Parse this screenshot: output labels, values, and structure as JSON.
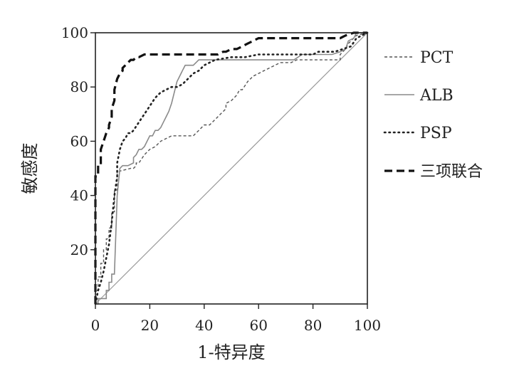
{
  "chart_data": {
    "type": "line",
    "xlabel": "1-特异度",
    "ylabel": "敏感度",
    "xlim": [
      0,
      100
    ],
    "ylim": [
      0,
      100
    ],
    "xticks": [
      "0",
      "20",
      "40",
      "60",
      "80",
      "100"
    ],
    "yticks": [
      "20",
      "40",
      "60",
      "80",
      "100"
    ],
    "grid": false,
    "legend_position": "right",
    "reference_line": {
      "x": [
        0,
        100
      ],
      "y": [
        0,
        100
      ],
      "color": "#999999"
    },
    "series": [
      {
        "name": "PCT",
        "style": "dashed-fine",
        "color": "#555555",
        "x": [
          0,
          0,
          1,
          1,
          2,
          2,
          3,
          3,
          4,
          4,
          5,
          5,
          6,
          6,
          7,
          7,
          8,
          8,
          9,
          13,
          14,
          15,
          15,
          16,
          18,
          20,
          22,
          24,
          26,
          28,
          30,
          32,
          34,
          36,
          38,
          40,
          42,
          44,
          46,
          48,
          48,
          50,
          52,
          53,
          54,
          56,
          58,
          60,
          62,
          64,
          66,
          68,
          70,
          72,
          74,
          76,
          78,
          80,
          82,
          84,
          86,
          88,
          90,
          90,
          91,
          92,
          93,
          94,
          96,
          100
        ],
        "y": [
          0,
          5,
          5,
          10,
          10,
          15,
          15,
          20,
          20,
          24,
          24,
          28,
          28,
          34,
          34,
          42,
          42,
          48,
          49,
          50,
          50,
          51,
          52,
          52,
          55,
          57,
          58,
          60,
          61,
          62,
          62,
          62,
          62,
          62,
          64,
          66,
          66,
          68,
          70,
          72,
          74,
          75,
          77,
          79,
          79,
          82,
          84,
          85,
          86,
          87,
          88,
          89,
          89,
          89,
          90,
          90,
          90,
          90,
          90,
          90,
          90,
          90,
          90,
          92,
          93,
          94,
          96,
          97,
          99,
          100
        ]
      },
      {
        "name": "ALB",
        "style": "solid",
        "color": "#8a8a8a",
        "x": [
          0,
          1,
          1,
          4,
          4,
          5,
          5,
          6,
          6,
          7,
          8,
          9,
          9,
          10,
          12,
          14,
          14,
          15,
          16,
          17,
          18,
          19,
          20,
          21,
          22,
          23,
          24,
          25,
          26,
          27,
          28,
          29,
          30,
          31,
          32,
          33,
          34,
          35,
          36,
          37,
          38,
          39,
          40,
          45,
          50,
          55,
          60,
          65,
          70,
          73,
          76,
          80,
          84,
          87,
          90,
          92,
          93,
          95,
          96,
          100
        ],
        "y": [
          0,
          0,
          2,
          2,
          5,
          5,
          8,
          8,
          11,
          11,
          40,
          50,
          50,
          51,
          51,
          52,
          54,
          55,
          57,
          57,
          58,
          60,
          62,
          62,
          64,
          64,
          65,
          67,
          69,
          71,
          74,
          78,
          82,
          84,
          86,
          88,
          88,
          88,
          88,
          89,
          90,
          90,
          90,
          90,
          90,
          90,
          90,
          90,
          90,
          90,
          92,
          92,
          92,
          92,
          93,
          94,
          97,
          98,
          100,
          100
        ]
      },
      {
        "name": "PSP",
        "style": "dotted",
        "color": "#222222",
        "x": [
          0,
          1,
          2,
          3,
          4,
          5,
          6,
          7,
          8,
          8,
          9,
          10,
          11,
          12,
          13,
          14,
          16,
          18,
          20,
          22,
          24,
          26,
          28,
          30,
          32,
          34,
          36,
          38,
          40,
          44,
          50,
          55,
          60,
          65,
          70,
          75,
          80,
          82,
          85,
          88,
          91,
          94,
          96,
          100
        ],
        "y": [
          0,
          5,
          8,
          12,
          17,
          22,
          30,
          40,
          47,
          52,
          57,
          60,
          61,
          63,
          63,
          64,
          67,
          70,
          73,
          76,
          78,
          79,
          80,
          80,
          81,
          83,
          85,
          86,
          88,
          90,
          91,
          91,
          92,
          92,
          92,
          92,
          92,
          93,
          93,
          93,
          94,
          95,
          98,
          100
        ]
      },
      {
        "name": "三项联合",
        "style": "dashed-bold",
        "color": "#111111",
        "x": [
          0,
          0,
          1,
          1,
          2,
          2,
          3,
          4,
          5,
          5,
          6,
          6,
          7,
          7,
          8,
          9,
          10,
          10,
          11,
          12,
          13,
          14,
          15,
          16,
          18,
          20,
          22,
          30,
          38,
          45,
          47,
          48,
          50,
          52,
          54,
          56,
          58,
          60,
          65,
          70,
          80,
          90,
          92,
          95,
          100
        ],
        "y": [
          0,
          47,
          47,
          51,
          51,
          57,
          60,
          63,
          65,
          66,
          69,
          72,
          75,
          79,
          83,
          85,
          86,
          87,
          88,
          89,
          90,
          90,
          91,
          91,
          92,
          92,
          92,
          92,
          92,
          92,
          93,
          93,
          94,
          94,
          95,
          96,
          97,
          98,
          98,
          98,
          98,
          98,
          99,
          100,
          100
        ]
      }
    ]
  }
}
